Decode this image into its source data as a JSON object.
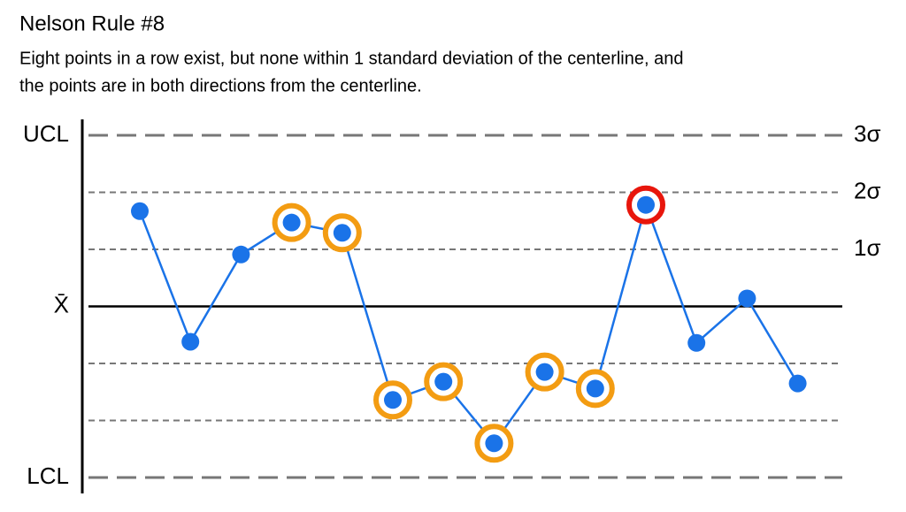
{
  "chart_data": {
    "type": "line",
    "title": "Nelson Rule #8",
    "subtitle": [
      "Eight points in a row exist, but none within 1 standard deviation of the centerline, and",
      "the points are in both directions from the centerline."
    ],
    "series": [
      {
        "color": "#1a73e8",
        "values": [
          1.67,
          -0.62,
          0.91,
          1.47,
          1.29,
          -1.64,
          -1.32,
          -2.4,
          -1.15,
          -1.44,
          1.78,
          -0.64,
          0.14,
          -1.35
        ],
        "ring_colors": [
          null,
          null,
          null,
          "#f39c12",
          "#f39c12",
          "#f39c12",
          "#f39c12",
          "#f39c12",
          "#f39c12",
          "#f39c12",
          "#e8160c",
          null,
          null,
          null
        ]
      }
    ],
    "ylim": [
      -3,
      3
    ],
    "yticks": [
      {
        "value": 3,
        "label": "UCL"
      },
      {
        "value": 0,
        "label": "X̄"
      },
      {
        "value": -3,
        "label": "LCL"
      }
    ],
    "y2ticks": [
      {
        "value": 3,
        "label": "3σ"
      },
      {
        "value": 2,
        "label": "2σ"
      },
      {
        "value": 1,
        "label": "1σ"
      }
    ],
    "grid": [
      -3,
      -2,
      -1,
      0,
      1,
      2,
      3
    ]
  }
}
